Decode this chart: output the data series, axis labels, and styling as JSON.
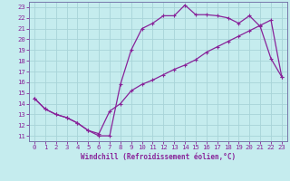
{
  "xlabel": "Windchill (Refroidissement éolien,°C)",
  "bg_color": "#c5ecee",
  "line_color": "#882299",
  "grid_color": "#a8d4d8",
  "spine_color": "#7777aa",
  "xlim": [
    -0.5,
    23.5
  ],
  "ylim": [
    10.5,
    23.5
  ],
  "xticks": [
    0,
    1,
    2,
    3,
    4,
    5,
    6,
    7,
    8,
    9,
    10,
    11,
    12,
    13,
    14,
    15,
    16,
    17,
    18,
    19,
    20,
    21,
    22,
    23
  ],
  "yticks": [
    11,
    12,
    13,
    14,
    15,
    16,
    17,
    18,
    19,
    20,
    21,
    22,
    23
  ],
  "line1_x": [
    0,
    1,
    2,
    3,
    4,
    5,
    6,
    7,
    8,
    9,
    10,
    11,
    12,
    13,
    14,
    15,
    16,
    17,
    18,
    19,
    20,
    21,
    22,
    23
  ],
  "line1_y": [
    14.5,
    13.5,
    13.0,
    12.7,
    12.2,
    11.5,
    11.0,
    11.0,
    15.8,
    19.0,
    21.0,
    21.5,
    22.2,
    22.2,
    23.2,
    22.3,
    22.3,
    22.2,
    22.0,
    21.5,
    22.2,
    21.2,
    18.2,
    16.5
  ],
  "line2_x": [
    0,
    1,
    2,
    3,
    4,
    5,
    6,
    7,
    8,
    9,
    10,
    11,
    12,
    13,
    14,
    15,
    16,
    17,
    18,
    19,
    20,
    21,
    22,
    23
  ],
  "line2_y": [
    14.5,
    13.5,
    13.0,
    12.7,
    12.2,
    11.5,
    11.2,
    13.3,
    14.0,
    15.2,
    15.8,
    16.2,
    16.7,
    17.2,
    17.6,
    18.1,
    18.8,
    19.3,
    19.8,
    20.3,
    20.8,
    21.3,
    21.8,
    16.5
  ],
  "tick_fontsize": 5.2,
  "xlabel_fontsize": 5.5
}
